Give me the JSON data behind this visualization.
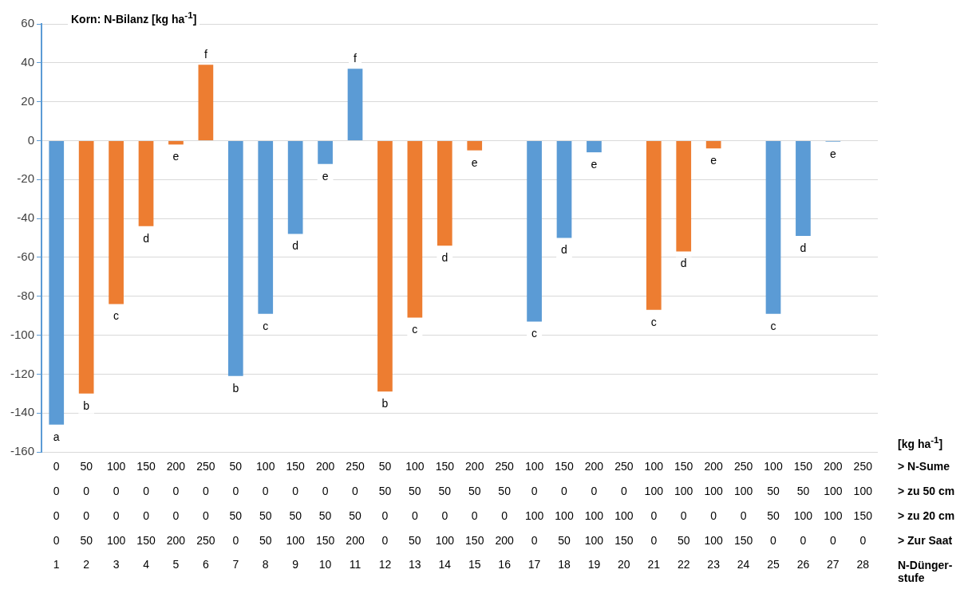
{
  "chart_data": {
    "type": "bar",
    "title": "Korn: N-Bilanz [kg ha$^{-1}$]",
    "categories": [
      "0\n0\n0\n0\n1",
      "50\n0\n0\n50\n2",
      "100\n0\n0\n100\n3",
      "150\n0\n0\n150\n4",
      "200\n0\n0\n200\n5",
      "250\n0\n0\n250\n6",
      "50\n0\n50\n0\n7",
      "100\n0\n50\n50\n8",
      "150\n0\n50\n100\n9",
      "200\n0\n50\n150\n10",
      "250\n0\n50\n200\n11",
      "50\n50\n0\n0\n12",
      "100\n50\n0\n50\n13",
      "150\n50\n0\n100\n14",
      "200\n50\n0\n150\n15",
      "250\n50\n0\n200\n16",
      "100\n0\n100\n0\n17",
      "150\n0\n100\n50\n18",
      "200\n0\n100\n100\n19",
      "250\n0\n100\n150\n20",
      "100\n100\n0\n0\n21",
      "150\n100\n0\n50\n22",
      "200\n100\n0\n100\n23",
      "250\n100\n0\n150\n24",
      "100\n50\n50\n0\n25",
      "150\n50\n100\n0\n26",
      "200\n100\n100\n0\n27",
      "250\n100\n150\n0\n28"
    ],
    "values": [
      -146,
      -130,
      -84,
      -44,
      -2,
      39,
      -121,
      -89,
      -48,
      -12,
      37,
      -129,
      -91,
      -54,
      -5,
      null,
      -93,
      -50,
      -6,
      null,
      -87,
      -57,
      -4,
      null,
      -89,
      -49,
      -0.5,
      null
    ],
    "colors": [
      "#5b9bd5",
      "#ed7d31",
      "#ed7d31",
      "#ed7d31",
      "#ed7d31",
      "#ed7d31",
      "#5b9bd5",
      "#5b9bd5",
      "#5b9bd5",
      "#5b9bd5",
      "#5b9bd5",
      "#ed7d31",
      "#ed7d31",
      "#ed7d31",
      "#ed7d31",
      "#ed7d31",
      "#5b9bd5",
      "#5b9bd5",
      "#5b9bd5",
      "#5b9bd5",
      "#ed7d31",
      "#ed7d31",
      "#ed7d31",
      "#ed7d31",
      "#5b9bd5",
      "#5b9bd5",
      "#5b9bd5",
      "#5b9bd5"
    ],
    "value_labels": [
      "a",
      "b",
      "c",
      "d",
      "e",
      "f",
      "b",
      "c",
      "d",
      "e",
      "f",
      "b",
      "c",
      "d",
      "e",
      null,
      "c",
      "d",
      "e",
      null,
      "c",
      "d",
      "e",
      null,
      "c",
      "d",
      "e",
      null
    ],
    "ylim": [
      -160,
      60
    ],
    "yticks": [
      -160,
      -140,
      -120,
      -100,
      -80,
      -60,
      -40,
      -20,
      0,
      20,
      40,
      60
    ],
    "grid": "y",
    "legend": false,
    "annotations": [
      "[kg ha$^{-1}$]",
      "> N-Sume",
      "> zu 50 cm",
      "> zu 20 cm",
      "> Zur Saat",
      "N-Dünger-stufe"
    ]
  }
}
